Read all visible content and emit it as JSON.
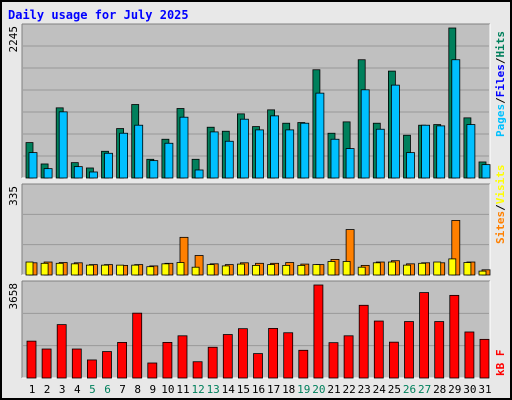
{
  "title": "Daily usage for July 2025",
  "colors": {
    "hits": "#00805c",
    "files": "#0000ff",
    "pages": "#00c0ff",
    "visits": "#ffff00",
    "sites": "#ff8000",
    "kbytes": "#ff0000",
    "weekend_label": "#00805c",
    "weekday_label": "#000000",
    "plot_bg": "#c0c0c0",
    "frame_bg": "#e8e8e8"
  },
  "chart_data": [
    {
      "type": "bar",
      "panel": "top",
      "ymax_label": "2245",
      "ylim": [
        0,
        2245
      ],
      "categories": [
        "1",
        "2",
        "3",
        "4",
        "5",
        "6",
        "7",
        "8",
        "9",
        "10",
        "11",
        "12",
        "13",
        "14",
        "15",
        "16",
        "17",
        "18",
        "19",
        "20",
        "21",
        "22",
        "23",
        "24",
        "25",
        "26",
        "27",
        "28",
        "29",
        "30",
        "31"
      ],
      "weekend_days": [
        "5",
        "6",
        "12",
        "13",
        "19",
        "20",
        "26",
        "27"
      ],
      "legend": [
        "Pages",
        "/",
        "Files",
        "/",
        "Hits"
      ],
      "series": [
        {
          "name": "Hits",
          "values": [
            530,
            210,
            1050,
            230,
            150,
            400,
            740,
            1100,
            280,
            580,
            1040,
            280,
            760,
            700,
            960,
            770,
            1020,
            820,
            830,
            1620,
            670,
            840,
            1770,
            820,
            1600,
            640,
            790,
            800,
            2245,
            900,
            240
          ]
        },
        {
          "name": "Pages",
          "values": [
            380,
            140,
            990,
            170,
            90,
            370,
            670,
            790,
            260,
            520,
            910,
            120,
            690,
            550,
            880,
            720,
            930,
            720,
            820,
            1270,
            580,
            440,
            1320,
            730,
            1390,
            380,
            790,
            780,
            1770,
            800,
            200
          ]
        }
      ]
    },
    {
      "type": "bar",
      "panel": "middle",
      "ymax_label": "335",
      "ylim": [
        0,
        335
      ],
      "categories": [
        "1",
        "2",
        "3",
        "4",
        "5",
        "6",
        "7",
        "8",
        "9",
        "10",
        "11",
        "12",
        "13",
        "14",
        "15",
        "16",
        "17",
        "18",
        "19",
        "20",
        "21",
        "22",
        "23",
        "24",
        "25",
        "26",
        "27",
        "28",
        "29",
        "30",
        "31"
      ],
      "legend": [
        "Sites",
        "/",
        "Visits"
      ],
      "series": [
        {
          "name": "Visits",
          "values": [
            50,
            45,
            45,
            43,
            38,
            38,
            38,
            38,
            32,
            43,
            48,
            30,
            40,
            35,
            42,
            37,
            40,
            37,
            37,
            40,
            52,
            52,
            30,
            47,
            50,
            38,
            45,
            50,
            62,
            48,
            15
          ]
        },
        {
          "name": "Sites",
          "values": [
            47,
            50,
            48,
            47,
            40,
            40,
            37,
            40,
            35,
            45,
            145,
            75,
            43,
            40,
            47,
            45,
            45,
            48,
            42,
            40,
            60,
            175,
            37,
            50,
            55,
            43,
            47,
            47,
            210,
            50,
            20
          ]
        }
      ]
    },
    {
      "type": "bar",
      "panel": "bottom",
      "ymax_label": "3658",
      "ylim": [
        0,
        3658
      ],
      "categories": [
        "1",
        "2",
        "3",
        "4",
        "5",
        "6",
        "7",
        "8",
        "9",
        "10",
        "11",
        "12",
        "13",
        "14",
        "15",
        "16",
        "17",
        "18",
        "19",
        "20",
        "21",
        "22",
        "23",
        "24",
        "25",
        "26",
        "27",
        "28",
        "29",
        "30",
        "31"
      ],
      "legend": [
        "kB F"
      ],
      "series": [
        {
          "name": "kB F",
          "values": [
            1450,
            1140,
            2100,
            1140,
            710,
            1040,
            1400,
            2550,
            590,
            1400,
            1660,
            640,
            1210,
            1710,
            1940,
            960,
            1950,
            1780,
            1090,
            3658,
            1390,
            1660,
            2860,
            2240,
            1410,
            2220,
            3360,
            2220,
            3250,
            1810,
            1520
          ]
        }
      ]
    }
  ]
}
